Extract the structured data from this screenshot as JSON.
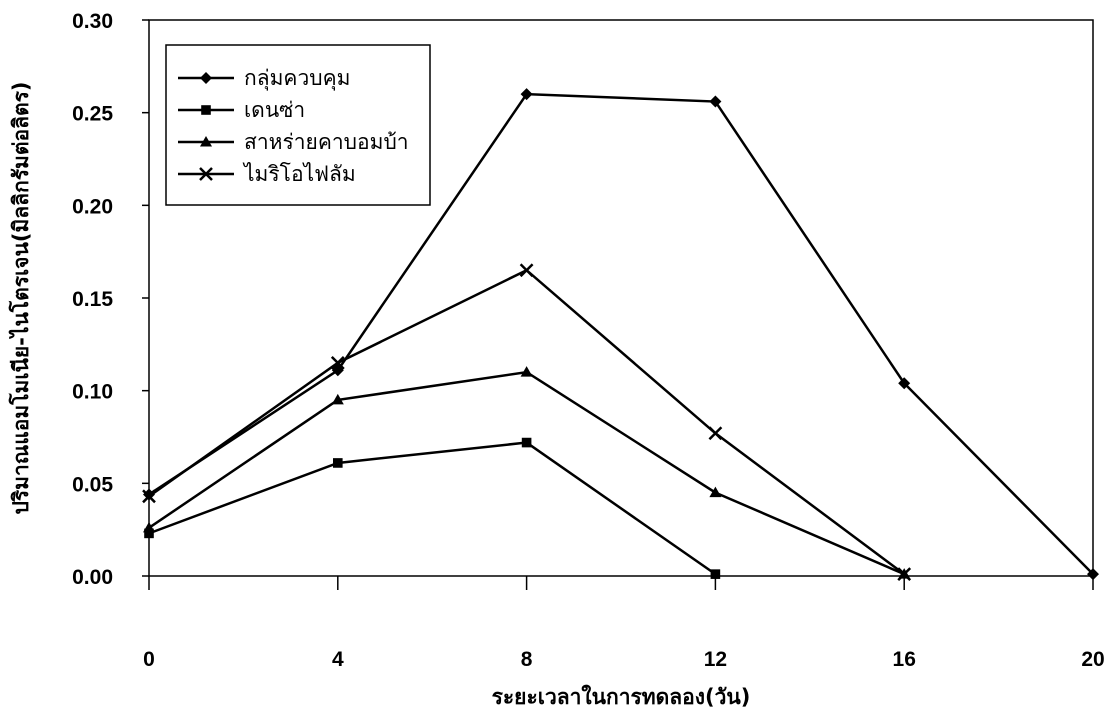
{
  "chart_data": {
    "type": "line",
    "x": [
      0,
      4,
      8,
      12,
      16,
      20
    ],
    "xlabel": "ระยะเวลาในการทดลอง(วัน)",
    "ylabel": "ปริมาณแอมโมเนีย-ไนโตรเจน(มิลลิกรัมต่อลิตร)",
    "xlim": [
      0,
      20
    ],
    "ylim": [
      0,
      0.3
    ],
    "x_ticks": [
      "0",
      "4",
      "8",
      "12",
      "16",
      "20"
    ],
    "y_ticks": [
      "0.00",
      "0.05",
      "0.10",
      "0.15",
      "0.20",
      "0.25",
      "0.30"
    ],
    "grid": false,
    "legend_position": "top-left",
    "line_color": "#000000",
    "series": [
      {
        "name": "กลุ่มควบคุม",
        "marker": "diamond",
        "x": [
          0,
          4,
          8,
          12,
          16,
          20
        ],
        "values": [
          0.044,
          0.111,
          0.26,
          0.256,
          0.104,
          0.001
        ]
      },
      {
        "name": "เดนซ่า",
        "marker": "square",
        "x": [
          0,
          4,
          8,
          12
        ],
        "values": [
          0.023,
          0.061,
          0.072,
          0.001
        ]
      },
      {
        "name": "สาหร่ายคาบอมบ้า",
        "marker": "triangle",
        "x": [
          0,
          4,
          8,
          12,
          16
        ],
        "values": [
          0.026,
          0.095,
          0.11,
          0.045,
          0.001
        ]
      },
      {
        "name": "ไมริโอไฟลัม",
        "marker": "x",
        "x": [
          0,
          4,
          8,
          12,
          16
        ],
        "values": [
          0.043,
          0.115,
          0.165,
          0.077,
          0.001
        ]
      }
    ]
  }
}
